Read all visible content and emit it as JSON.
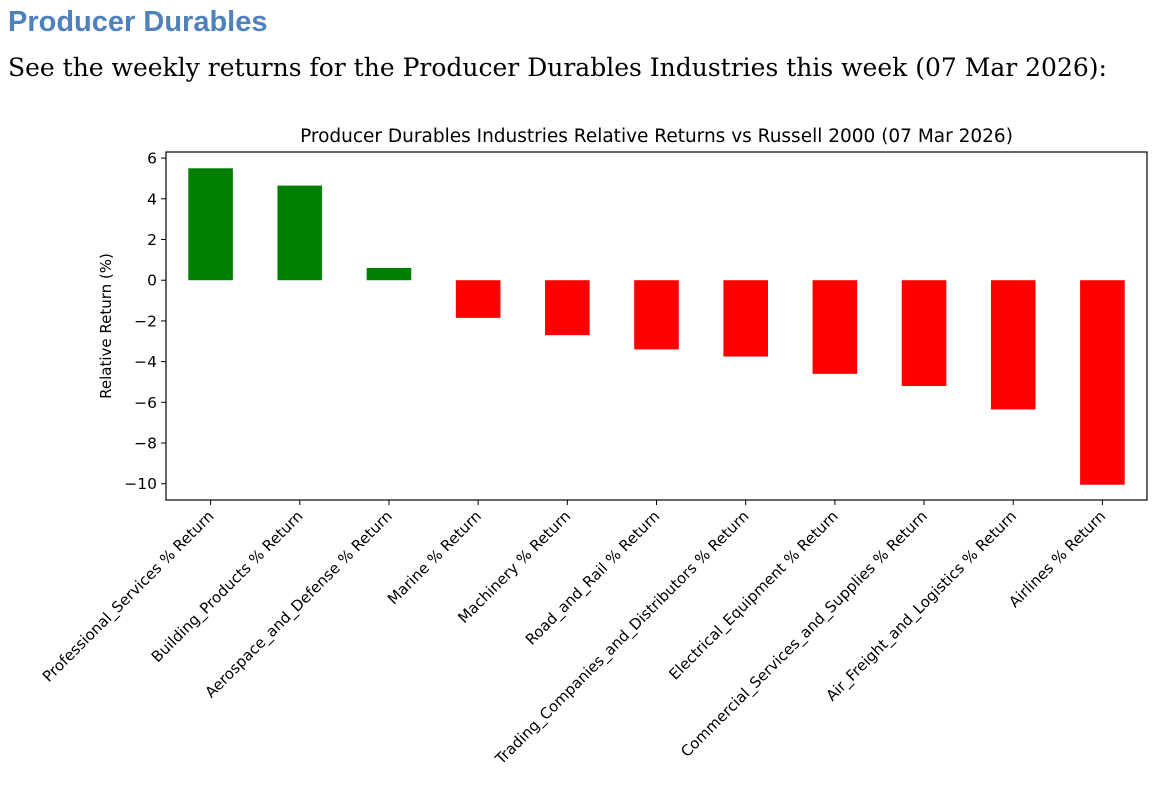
{
  "page": {
    "heading": "Producer Durables",
    "heading_color": "#4f81bd",
    "subtitle": "See the weekly returns for the Producer Durables Industries this week (07 Mar 2026):"
  },
  "chart_data": {
    "type": "bar",
    "title": "Producer Durables Industries Relative Returns vs Russell 2000 (07 Mar 2026)",
    "xlabel": "",
    "ylabel": "Relative Return (%)",
    "ylim": [
      -10.8,
      6.3
    ],
    "yticks": [
      6,
      4,
      2,
      0,
      -2,
      -4,
      -6,
      -8,
      -10
    ],
    "ytick_labels": [
      "6",
      "4",
      "2",
      "0",
      "−2",
      "−4",
      "−6",
      "−8",
      "−10"
    ],
    "grid": false,
    "legend": false,
    "categories": [
      "Professional_Services % Return",
      "Building_Products % Return",
      "Aerospace_and_Defense % Return",
      "Marine % Return",
      "Machinery % Return",
      "Road_and_Rail % Return",
      "Trading_Companies_and_Distributors % Return",
      "Electrical_Equipment % Return",
      "Commercial_Services_and_Supplies % Return",
      "Air_Freight_and_Logistics % Return",
      "Airlines % Return"
    ],
    "values": [
      5.5,
      4.65,
      0.6,
      -1.85,
      -2.7,
      -3.4,
      -3.75,
      -4.6,
      -5.2,
      -6.35,
      -10.05
    ],
    "colors": {
      "positive": "#008000",
      "negative": "#ff0000"
    }
  }
}
